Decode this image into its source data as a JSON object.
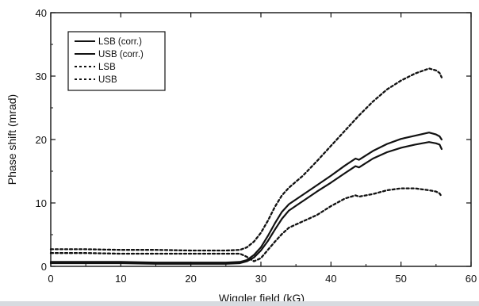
{
  "chart_data": {
    "type": "line",
    "title": "",
    "xlabel": "Wiggler field (kG)",
    "ylabel": "Phase shift (mrad)",
    "xlim": [
      0,
      60
    ],
    "ylim": [
      0,
      40
    ],
    "xticks": [
      "0",
      "10",
      "20",
      "30",
      "40",
      "50",
      "60"
    ],
    "yticks": [
      "0",
      "10",
      "20",
      "30",
      "40"
    ],
    "grid": false,
    "legend_position": "top-left",
    "series": [
      {
        "name": "LSB (corr.)",
        "style": "solid",
        "color": "#111111",
        "x": [
          0,
          5,
          10,
          15,
          20,
          25,
          27,
          28,
          29,
          30,
          31,
          32,
          33,
          34,
          36,
          38,
          40,
          42,
          43.5,
          44,
          46,
          48,
          50,
          52,
          54,
          55,
          55.5,
          55.8
        ],
        "y": [
          0.7,
          0.7,
          0.7,
          0.6,
          0.6,
          0.6,
          0.7,
          1.0,
          1.8,
          3.0,
          4.8,
          6.8,
          8.6,
          9.8,
          11.3,
          12.8,
          14.3,
          15.9,
          17.0,
          16.8,
          18.2,
          19.3,
          20.1,
          20.6,
          21.1,
          20.8,
          20.5,
          20.0
        ]
      },
      {
        "name": "USB (corr.)",
        "style": "solid",
        "color": "#111111",
        "x": [
          0,
          5,
          10,
          15,
          20,
          25,
          27,
          28,
          29,
          30,
          31,
          32,
          33,
          34,
          36,
          38,
          40,
          42,
          43.5,
          44,
          46,
          48,
          50,
          52,
          54,
          55,
          55.5,
          55.8
        ],
        "y": [
          0.5,
          0.5,
          0.5,
          0.4,
          0.4,
          0.4,
          0.5,
          0.8,
          1.4,
          2.5,
          4.0,
          5.8,
          7.5,
          8.8,
          10.3,
          11.8,
          13.2,
          14.7,
          15.8,
          15.6,
          17.0,
          18.0,
          18.7,
          19.2,
          19.6,
          19.4,
          19.2,
          18.5
        ]
      },
      {
        "name": "LSB",
        "style": "dotted",
        "color": "#111111",
        "x": [
          0,
          5,
          10,
          15,
          20,
          25,
          27,
          28,
          29,
          30,
          31,
          32,
          33,
          34,
          36,
          38,
          40,
          42,
          44,
          46,
          48,
          50,
          52,
          54,
          55,
          55.5,
          55.8
        ],
        "y": [
          2.7,
          2.7,
          2.6,
          2.6,
          2.5,
          2.5,
          2.6,
          3.0,
          3.9,
          5.3,
          7.2,
          9.4,
          11.2,
          12.4,
          14.3,
          16.6,
          19.0,
          21.4,
          23.8,
          26.0,
          27.9,
          29.3,
          30.4,
          31.2,
          30.9,
          30.5,
          29.8
        ]
      },
      {
        "name": "USB",
        "style": "dotted",
        "color": "#111111",
        "x": [
          0,
          5,
          10,
          15,
          20,
          25,
          27,
          28,
          29,
          30,
          31,
          32,
          33,
          34,
          36,
          38,
          40,
          42,
          43.5,
          44,
          46,
          48,
          50,
          52,
          54,
          55,
          55.5,
          55.8
        ],
        "y": [
          2.1,
          2.1,
          2.0,
          2.0,
          2.0,
          2.0,
          2.0,
          1.5,
          0.8,
          1.3,
          2.6,
          3.9,
          5.1,
          6.1,
          7.1,
          8.1,
          9.5,
          10.7,
          11.2,
          11.0,
          11.4,
          12.0,
          12.3,
          12.3,
          12.0,
          11.8,
          11.5,
          11.0
        ]
      }
    ]
  }
}
